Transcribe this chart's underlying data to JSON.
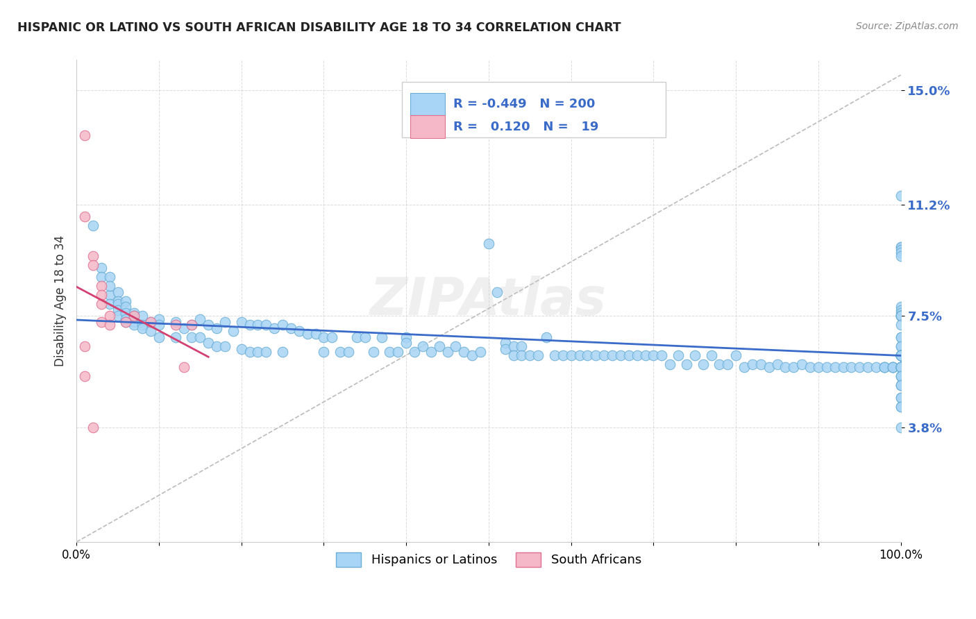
{
  "title": "HISPANIC OR LATINO VS SOUTH AFRICAN DISABILITY AGE 18 TO 34 CORRELATION CHART",
  "source": "Source: ZipAtlas.com",
  "ylabel": "Disability Age 18 to 34",
  "xlim": [
    0,
    1.0
  ],
  "ylim": [
    0,
    0.16
  ],
  "yticks": [
    0.038,
    0.075,
    0.112,
    0.15
  ],
  "ytick_labels": [
    "3.8%",
    "7.5%",
    "11.2%",
    "15.0%"
  ],
  "xticks": [
    0.0,
    0.1,
    0.2,
    0.3,
    0.4,
    0.5,
    0.6,
    0.7,
    0.8,
    0.9,
    1.0
  ],
  "xtick_labels": [
    "0.0%",
    "",
    "",
    "",
    "",
    "",
    "",
    "",
    "",
    "",
    "100.0%"
  ],
  "blue_color": "#a8d4f5",
  "blue_edge": "#6aaed6",
  "pink_color": "#f5b8c8",
  "pink_edge": "#e07090",
  "blue_line_color": "#3a6bc9",
  "pink_line_color": "#d44070",
  "legend_blue_R": "-0.449",
  "legend_blue_N": "200",
  "legend_pink_R": "0.120",
  "legend_pink_N": "19",
  "blue_scatter_x": [
    0.02,
    0.03,
    0.03,
    0.04,
    0.04,
    0.04,
    0.04,
    0.05,
    0.05,
    0.05,
    0.05,
    0.05,
    0.06,
    0.06,
    0.06,
    0.06,
    0.06,
    0.07,
    0.07,
    0.07,
    0.07,
    0.08,
    0.08,
    0.08,
    0.09,
    0.09,
    0.1,
    0.1,
    0.1,
    0.12,
    0.12,
    0.13,
    0.14,
    0.14,
    0.15,
    0.15,
    0.16,
    0.16,
    0.17,
    0.17,
    0.18,
    0.18,
    0.19,
    0.2,
    0.2,
    0.21,
    0.21,
    0.22,
    0.22,
    0.23,
    0.23,
    0.24,
    0.25,
    0.25,
    0.26,
    0.27,
    0.28,
    0.29,
    0.3,
    0.3,
    0.31,
    0.32,
    0.33,
    0.34,
    0.35,
    0.36,
    0.37,
    0.38,
    0.39,
    0.4,
    0.4,
    0.41,
    0.42,
    0.43,
    0.44,
    0.45,
    0.46,
    0.47,
    0.48,
    0.49,
    0.5,
    0.51,
    0.52,
    0.52,
    0.53,
    0.53,
    0.54,
    0.54,
    0.55,
    0.56,
    0.57,
    0.58,
    0.59,
    0.6,
    0.61,
    0.62,
    0.63,
    0.64,
    0.65,
    0.66,
    0.67,
    0.68,
    0.69,
    0.7,
    0.71,
    0.72,
    0.73,
    0.74,
    0.75,
    0.76,
    0.77,
    0.78,
    0.79,
    0.8,
    0.81,
    0.82,
    0.83,
    0.84,
    0.85,
    0.86,
    0.87,
    0.88,
    0.89,
    0.9,
    0.91,
    0.92,
    0.93,
    0.94,
    0.95,
    0.96,
    0.97,
    0.98,
    0.98,
    0.98,
    0.99,
    0.99,
    0.99,
    0.99,
    1.0,
    1.0,
    1.0,
    1.0,
    1.0,
    1.0,
    1.0,
    1.0,
    1.0,
    1.0,
    1.0,
    1.0,
    1.0,
    1.0,
    1.0,
    1.0,
    1.0,
    1.0,
    1.0,
    1.0,
    1.0,
    1.0,
    1.0,
    1.0,
    1.0,
    1.0,
    1.0,
    1.0,
    1.0,
    1.0,
    1.0,
    1.0,
    1.0,
    1.0,
    1.0,
    1.0,
    1.0,
    1.0,
    1.0,
    1.0,
    1.0,
    1.0,
    1.0,
    1.0,
    1.0,
    1.0,
    1.0,
    1.0,
    1.0,
    1.0,
    1.0,
    1.0,
    1.0,
    1.0,
    1.0,
    1.0,
    1.0,
    1.0,
    1.0,
    1.0,
    1.0,
    1.0
  ],
  "blue_scatter_y": [
    0.105,
    0.091,
    0.088,
    0.088,
    0.082,
    0.085,
    0.079,
    0.083,
    0.08,
    0.079,
    0.077,
    0.075,
    0.08,
    0.078,
    0.076,
    0.074,
    0.073,
    0.076,
    0.075,
    0.073,
    0.072,
    0.075,
    0.072,
    0.071,
    0.073,
    0.07,
    0.074,
    0.072,
    0.068,
    0.073,
    0.068,
    0.071,
    0.072,
    0.068,
    0.074,
    0.068,
    0.072,
    0.066,
    0.071,
    0.065,
    0.073,
    0.065,
    0.07,
    0.073,
    0.064,
    0.072,
    0.063,
    0.072,
    0.063,
    0.072,
    0.063,
    0.071,
    0.072,
    0.063,
    0.071,
    0.07,
    0.069,
    0.069,
    0.068,
    0.063,
    0.068,
    0.063,
    0.063,
    0.068,
    0.068,
    0.063,
    0.068,
    0.063,
    0.063,
    0.068,
    0.066,
    0.063,
    0.065,
    0.063,
    0.065,
    0.063,
    0.065,
    0.063,
    0.062,
    0.063,
    0.099,
    0.083,
    0.066,
    0.064,
    0.065,
    0.062,
    0.065,
    0.062,
    0.062,
    0.062,
    0.068,
    0.062,
    0.062,
    0.062,
    0.062,
    0.062,
    0.062,
    0.062,
    0.062,
    0.062,
    0.062,
    0.062,
    0.062,
    0.062,
    0.062,
    0.059,
    0.062,
    0.059,
    0.062,
    0.059,
    0.062,
    0.059,
    0.059,
    0.062,
    0.058,
    0.059,
    0.059,
    0.058,
    0.059,
    0.058,
    0.058,
    0.059,
    0.058,
    0.058,
    0.058,
    0.058,
    0.058,
    0.058,
    0.058,
    0.058,
    0.058,
    0.058,
    0.058,
    0.058,
    0.058,
    0.058,
    0.058,
    0.058,
    0.045,
    0.058,
    0.058,
    0.055,
    0.058,
    0.058,
    0.058,
    0.058,
    0.058,
    0.062,
    0.052,
    0.068,
    0.058,
    0.062,
    0.058,
    0.055,
    0.048,
    0.048,
    0.058,
    0.058,
    0.055,
    0.052,
    0.045,
    0.062,
    0.038,
    0.052,
    0.115,
    0.098,
    0.098,
    0.097,
    0.096,
    0.095,
    0.078,
    0.077,
    0.076,
    0.075,
    0.075,
    0.075,
    0.075,
    0.075,
    0.075,
    0.072,
    0.065,
    0.068,
    0.065,
    0.062,
    0.062,
    0.062,
    0.062,
    0.062,
    0.062,
    0.062,
    0.062,
    0.062,
    0.062,
    0.062,
    0.062,
    0.062,
    0.062,
    0.062,
    0.062,
    0.062
  ],
  "pink_scatter_x": [
    0.01,
    0.01,
    0.02,
    0.02,
    0.03,
    0.03,
    0.03,
    0.03,
    0.04,
    0.04,
    0.06,
    0.07,
    0.09,
    0.12,
    0.13,
    0.14,
    0.01,
    0.02,
    0.01
  ],
  "pink_scatter_y": [
    0.135,
    0.108,
    0.095,
    0.092,
    0.085,
    0.082,
    0.079,
    0.073,
    0.075,
    0.072,
    0.073,
    0.075,
    0.073,
    0.072,
    0.058,
    0.072,
    0.055,
    0.038,
    0.065
  ]
}
